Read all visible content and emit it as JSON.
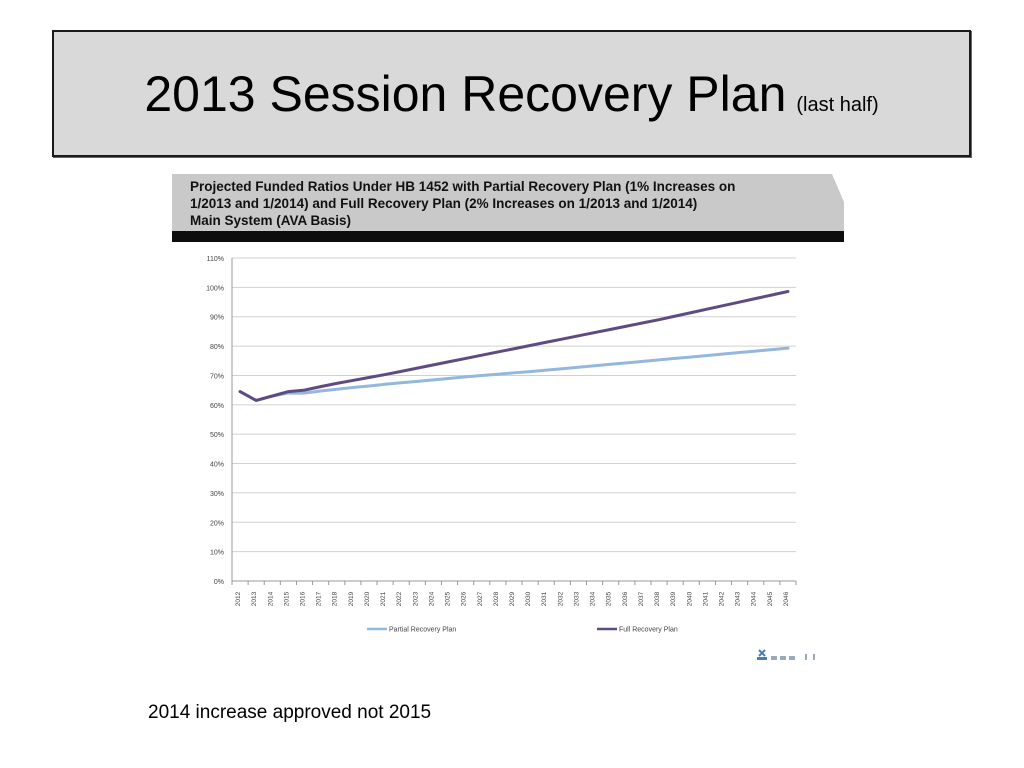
{
  "slide": {
    "title": "2013 Session Recovery Plan",
    "title_note": "(last half)",
    "caption": "2014 increase approved not 2015"
  },
  "chart_header": {
    "line1": "Projected Funded Ratios Under HB 1452 with Partial Recovery Plan (1% Increases on",
    "line2": "1/2013 and 1/2014) and Full Recovery Plan (2% Increases on 1/2013 and 1/2014)",
    "line3": "Main System (AVA Basis)"
  },
  "colors": {
    "partial": "#94b7dd",
    "full": "#5f4b82",
    "grid": "#d0d0d0",
    "header_bg": "#c9c9c9",
    "header_bar": "#0d0d0d"
  },
  "chart_data": {
    "type": "line",
    "title": "Projected Funded Ratios Under HB 1452 with Partial Recovery Plan (1% Increases on 1/2013 and 1/2014) and Full Recovery Plan (2% Increases on 1/2013 and 1/2014) Main System (AVA Basis)",
    "x": [
      "2012",
      "2013",
      "2014",
      "2015",
      "2016",
      "2017",
      "2018",
      "2019",
      "2020",
      "2021",
      "2022",
      "2023",
      "2024",
      "2025",
      "2026",
      "2027",
      "2028",
      "2029",
      "2030",
      "2031",
      "2032",
      "2033",
      "2034",
      "2035",
      "2036",
      "2037",
      "2038",
      "2039",
      "2040",
      "2041",
      "2042",
      "2043",
      "2044",
      "2045",
      "2046"
    ],
    "y_ticks": [
      "0%",
      "10%",
      "20%",
      "30%",
      "40%",
      "50%",
      "60%",
      "70%",
      "80%",
      "90%",
      "100%",
      "110%"
    ],
    "ylim": [
      0,
      110
    ],
    "grid": true,
    "legend_position": "bottom",
    "series": [
      {
        "name": "Partial Recovery Plan",
        "values": [
          64.5,
          61.5,
          63,
          64,
          64,
          64.7,
          65.3,
          65.9,
          66.4,
          67,
          67.5,
          68,
          68.5,
          69,
          69.5,
          70,
          70.4,
          70.9,
          71.3,
          71.8,
          72.3,
          72.8,
          73.3,
          73.8,
          74.3,
          74.8,
          75.3,
          75.8,
          76.3,
          76.8,
          77.3,
          77.8,
          78.3,
          78.8,
          79.3
        ]
      },
      {
        "name": "Full Recovery Plan",
        "values": [
          64.5,
          61.5,
          63,
          64.5,
          65,
          66.2,
          67.3,
          68.3,
          69.3,
          70.3,
          71.4,
          72.5,
          73.6,
          74.7,
          75.8,
          76.9,
          78,
          79.1,
          80.2,
          81.3,
          82.4,
          83.5,
          84.6,
          85.7,
          86.8,
          87.9,
          89,
          90.2,
          91.4,
          92.6,
          93.8,
          95,
          96.2,
          97.4,
          98.6
        ]
      }
    ]
  }
}
